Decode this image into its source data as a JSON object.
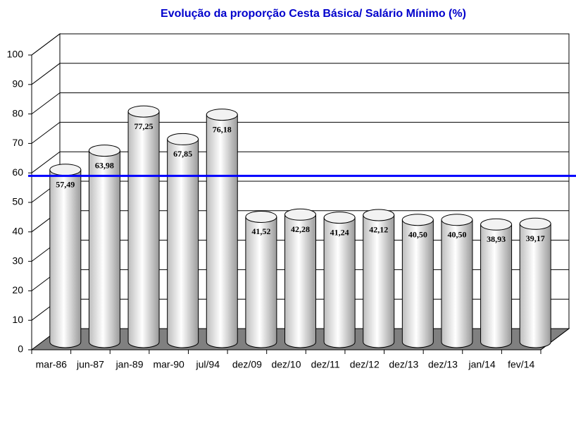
{
  "chart_data": {
    "type": "bar3d",
    "title": "Evolução da proporção Cesta Básica/ Salário Mínimo (%)",
    "categories": [
      "mar-86",
      "jun-87",
      "jan-89",
      "mar-90",
      "jul/94",
      "dez/09",
      "dez/10",
      "dez/11",
      "dez/12",
      "dez/13",
      "dez/13",
      "jan/14",
      "fev/14"
    ],
    "values": [
      57.49,
      63.98,
      77.25,
      67.85,
      76.18,
      41.52,
      42.28,
      41.24,
      42.12,
      40.5,
      40.5,
      38.93,
      39.17
    ],
    "value_labels": [
      "57,49",
      "63,98",
      "77,25",
      "67,85",
      "76,18",
      "41,52",
      "42,28",
      "41,24",
      "42,12",
      "40,50",
      "40,50",
      "38,93",
      "39,17"
    ],
    "value_label_colors": [
      "#0000cc",
      "#cc0000",
      "#cc0000",
      "#cc0000",
      "#cc0000",
      "#0000cc",
      "#0000cc",
      "#0000cc",
      "#0000cc",
      "#0000cc",
      "#0000cc",
      "#0000cc",
      "#0000cc"
    ],
    "ylim": [
      0,
      100
    ],
    "yticks": [
      0,
      10,
      20,
      30,
      40,
      50,
      60,
      70,
      80,
      90,
      100
    ],
    "grid": true,
    "reference_line": {
      "value": 59,
      "color": "#0000ff"
    }
  }
}
